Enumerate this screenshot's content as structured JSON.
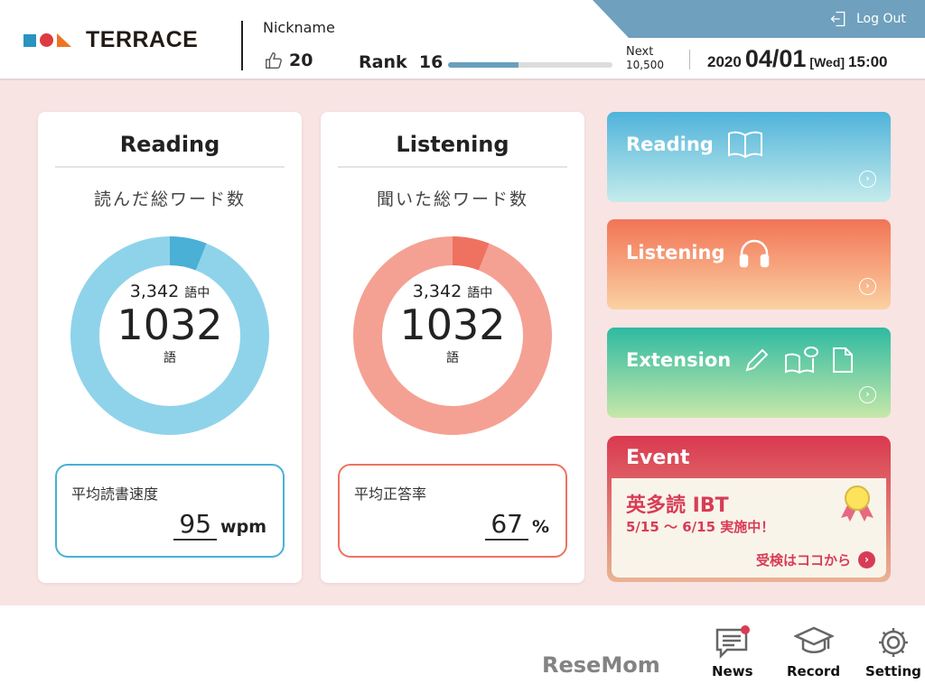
{
  "header": {
    "brand": "TERRACE",
    "nickname": "Nickname",
    "likes": "20",
    "rank_label": "Rank",
    "rank": "16",
    "progress": 0.43,
    "next_label": "Next",
    "next_value": "10,500",
    "year": "2020",
    "date": "04/01",
    "weekday": "[Wed]",
    "time": "15:00",
    "logout": "Log Out"
  },
  "reading": {
    "title": "Reading",
    "subtitle": "読んだ総ワード数",
    "total": "3,342",
    "total_unit": "語中",
    "count": "1032",
    "count_unit": "語",
    "highlight_fraction": 0.06,
    "stat_label": "平均読書速度",
    "stat_value": "95",
    "stat_unit": "wpm",
    "color": "#8fd3ea",
    "accent": "#4ab0d6"
  },
  "listening": {
    "title": "Listening",
    "subtitle": "聞いた総ワード数",
    "total": "3,342",
    "total_unit": "語中",
    "count": "1032",
    "count_unit": "語",
    "highlight_fraction": 0.06,
    "stat_label": "平均正答率",
    "stat_value": "67",
    "stat_unit": "%",
    "color": "#f4a193",
    "accent": "#ef7260"
  },
  "side": {
    "reading": "Reading",
    "listening": "Listening",
    "extension": "Extension"
  },
  "event": {
    "title": "Event",
    "name": "英多読 IBT",
    "period": "5/15 ～ 6/15  実施中！",
    "link": "受検はココから"
  },
  "footer": {
    "news": "News",
    "record": "Record",
    "setting": "Setting"
  },
  "watermark": "ReseMom"
}
